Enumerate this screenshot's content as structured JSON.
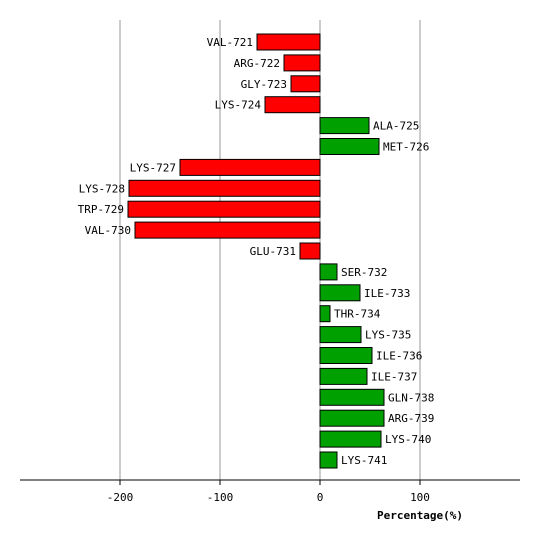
{
  "chart_data": {
    "type": "bar",
    "orientation": "horizontal",
    "categories": [
      "VAL-721",
      "ARG-722",
      "GLY-723",
      "LYS-724",
      "ALA-725",
      "MET-726",
      "LYS-727",
      "LYS-728",
      "TRP-729",
      "VAL-730",
      "GLU-731",
      "SER-732",
      "ILE-733",
      "THR-734",
      "LYS-735",
      "ILE-736",
      "ILE-737",
      "GLN-738",
      "ARG-739",
      "LYS-740",
      "LYS-741"
    ],
    "values": [
      -63,
      -36,
      -29,
      -55,
      49,
      59,
      -140,
      -191,
      -192,
      -185,
      -20,
      17,
      40,
      10,
      41,
      52,
      47,
      64,
      64,
      61,
      17
    ],
    "title": "",
    "xlabel": "Percentage(%)",
    "ylabel": "",
    "xlim": [
      -300,
      200
    ],
    "xticks": [
      -200,
      -100,
      0,
      100
    ],
    "grid": true,
    "colors": {
      "positive": "#00a000",
      "negative": "#ff0000",
      "grid": "#999999",
      "axis": "#000000"
    }
  }
}
